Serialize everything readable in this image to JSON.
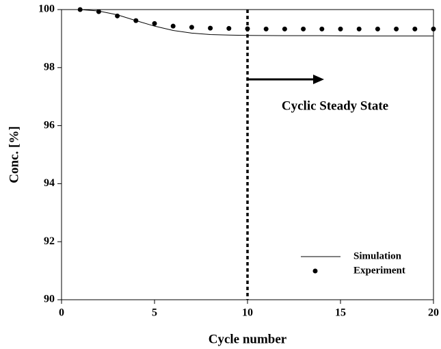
{
  "chart_data": {
    "type": "line",
    "xlabel": "Cycle number",
    "ylabel": "Conc. [%]",
    "annotation": "Cyclic Steady State",
    "vline": 10,
    "xlim": [
      0,
      20
    ],
    "xticks": [
      0,
      5,
      10,
      15,
      20
    ],
    "ylim": [
      90,
      100
    ],
    "yticks": [
      90,
      92,
      94,
      96,
      98,
      100
    ],
    "legend": "lower right",
    "series": [
      {
        "name": "Simulation",
        "color": "#000000",
        "style": "line",
        "x": [
          1,
          2,
          3,
          4,
          5,
          6,
          7,
          8,
          9,
          10,
          12,
          14,
          16,
          18,
          20
        ],
        "values": [
          100,
          99.95,
          99.82,
          99.62,
          99.43,
          99.28,
          99.19,
          99.14,
          99.12,
          99.11,
          99.1,
          99.1,
          99.09,
          99.09,
          99.09
        ]
      },
      {
        "name": "Experiment",
        "color": "#000000",
        "style": "marker",
        "x": [
          1,
          2,
          3,
          4,
          5,
          6,
          7,
          8,
          9,
          10,
          11,
          12,
          13,
          14,
          15,
          16,
          17,
          18,
          19,
          20
        ],
        "values": [
          100,
          99.93,
          99.78,
          99.62,
          99.52,
          99.43,
          99.39,
          99.36,
          99.35,
          99.34,
          99.33,
          99.33,
          99.33,
          99.33,
          99.33,
          99.33,
          99.33,
          99.33,
          99.33,
          99.33
        ]
      }
    ]
  }
}
